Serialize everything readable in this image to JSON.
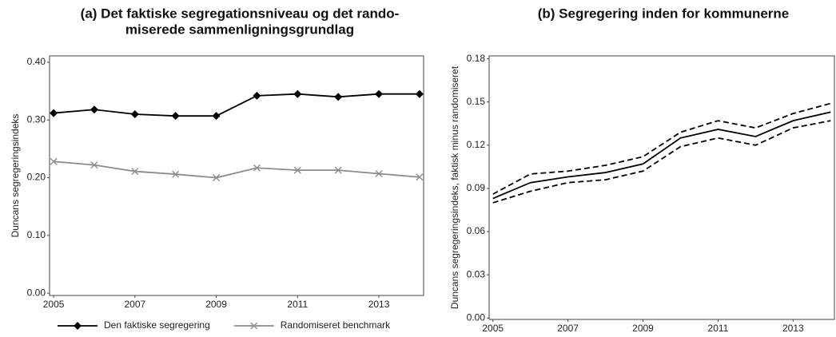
{
  "chart_data": [
    {
      "type": "line",
      "title": [
        "(a) Det faktiske segregationsniveau og det rando-",
        "miserede sammenligningsgrundlag"
      ],
      "y_label": "Duncans segregeringsindeks",
      "x": [
        2005,
        2006,
        2007,
        2008,
        2009,
        2010,
        2011,
        2012,
        2013,
        2014
      ],
      "series": [
        {
          "name": "Den faktiske segregering",
          "color": "#000000",
          "marker": "diamond",
          "dash": false,
          "values": [
            0.312,
            0.318,
            0.31,
            0.307,
            0.307,
            0.342,
            0.345,
            0.34,
            0.345,
            0.345
          ]
        },
        {
          "name": "Randomiseret benchmark",
          "color": "#8c8c8c",
          "marker": "x",
          "dash": false,
          "values": [
            0.228,
            0.222,
            0.211,
            0.206,
            0.2,
            0.217,
            0.213,
            0.213,
            0.207,
            0.201
          ]
        }
      ],
      "xlim": [
        2004.9,
        2014.1
      ],
      "xticks": [
        2005,
        2007,
        2009,
        2011,
        2013
      ],
      "ylim": [
        -0.004,
        0.411
      ],
      "yticks": [
        {
          "value": 0,
          "label": "0.00"
        },
        {
          "value": 0.1,
          "label": "0.10"
        },
        {
          "value": 0.2,
          "label": "0.20"
        },
        {
          "value": 0.3,
          "label": "0.30"
        },
        {
          "value": 0.4,
          "label": "0.40"
        }
      ],
      "legend": "bottom"
    },
    {
      "type": "line",
      "title": [
        "(b) Segregering inden for kommunerne"
      ],
      "y_label": "Duncans segregeringsindeks, faktisk minus randomiseret",
      "x": [
        2005,
        2006,
        2007,
        2008,
        2009,
        2010,
        2011,
        2012,
        2013,
        2014
      ],
      "series": [
        {
          "color": "#000000",
          "marker": "none",
          "dash": true,
          "values": [
            0.086,
            0.1,
            0.102,
            0.106,
            0.112,
            0.129,
            0.137,
            0.132,
            0.142,
            0.149
          ]
        },
        {
          "color": "#000000",
          "marker": "none",
          "dash": false,
          "values": [
            0.083,
            0.094,
            0.098,
            0.101,
            0.107,
            0.125,
            0.131,
            0.126,
            0.137,
            0.143
          ]
        },
        {
          "color": "#000000",
          "marker": "none",
          "dash": true,
          "values": [
            0.08,
            0.088,
            0.094,
            0.096,
            0.102,
            0.119,
            0.125,
            0.12,
            0.132,
            0.137
          ]
        }
      ],
      "xlim": [
        2004.9,
        2014.1
      ],
      "xticks": [
        2005,
        2007,
        2009,
        2011,
        2013
      ],
      "ylim": [
        -0.001,
        0.182
      ],
      "yticks": [
        {
          "value": 0,
          "label": "0.00"
        },
        {
          "value": 0.03,
          "label": "0.03"
        },
        {
          "value": 0.06,
          "label": "0.06"
        },
        {
          "value": 0.09,
          "label": "0.09"
        },
        {
          "value": 0.12,
          "label": "0.12"
        },
        {
          "value": 0.15,
          "label": "0.15"
        },
        {
          "value": 0.18,
          "label": "0.18"
        }
      ]
    }
  ]
}
